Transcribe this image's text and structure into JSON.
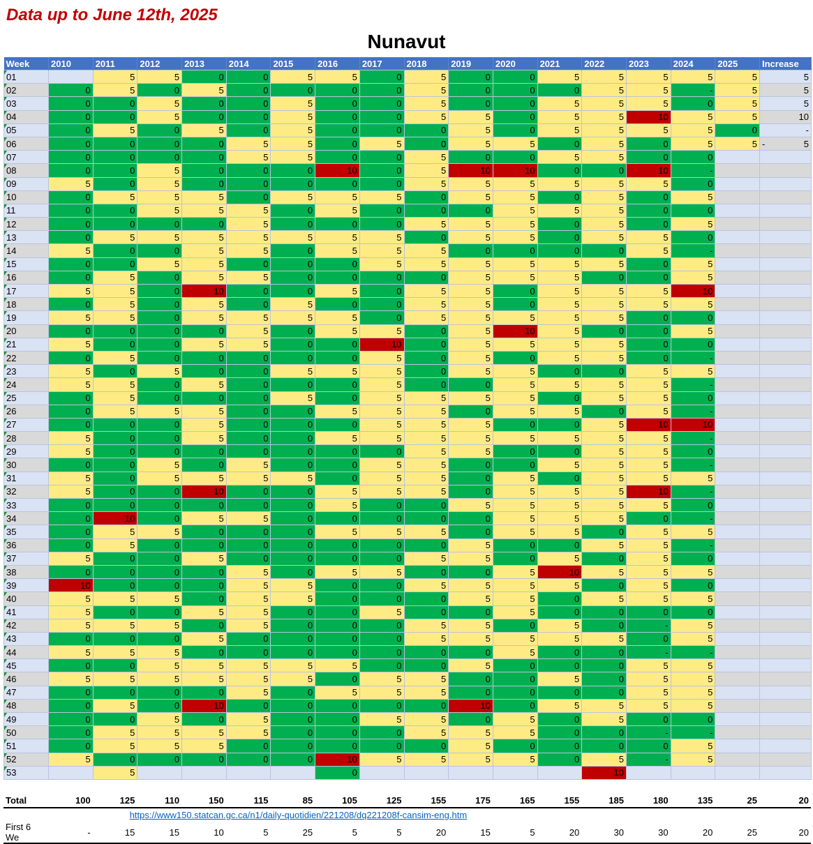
{
  "title": "Data up to June 12th, 2025",
  "region": "Nunavut",
  "headers": [
    "Week",
    "2010",
    "2011",
    "2012",
    "2013",
    "2014",
    "2015",
    "2016",
    "2017",
    "2018",
    "2019",
    "2020",
    "2021",
    "2022",
    "2023",
    "2024",
    "2025",
    "Increase"
  ],
  "colors": {
    "header": "#4472c4",
    "green": "#00b050",
    "yellow": "#ffeb84",
    "red": "#c00000",
    "title": "#c00000"
  },
  "rows": [
    {
      "week": "01",
      "values": [
        "",
        "5",
        "5",
        "0",
        "0",
        "5",
        "5",
        "0",
        "5",
        "0",
        "0",
        "5",
        "5",
        "5",
        "5"
      ],
      "y2025": "5",
      "increase": "5"
    },
    {
      "week": "02",
      "values": [
        "0",
        "5",
        "0",
        "5",
        "0",
        "0",
        "0",
        "0",
        "5",
        "0",
        "0",
        "0",
        "5",
        "5",
        "-"
      ],
      "y2025": "5",
      "increase": "5"
    },
    {
      "week": "03",
      "values": [
        "0",
        "0",
        "5",
        "0",
        "0",
        "5",
        "0",
        "0",
        "5",
        "0",
        "0",
        "5",
        "5",
        "5",
        "0"
      ],
      "y2025": "5",
      "increase": "5"
    },
    {
      "week": "04",
      "values": [
        "0",
        "0",
        "5",
        "0",
        "0",
        "5",
        "0",
        "0",
        "5",
        "5",
        "0",
        "5",
        "5",
        "10",
        "5"
      ],
      "y2025": "5",
      "increase": "10"
    },
    {
      "week": "05",
      "values": [
        "0",
        "5",
        "0",
        "5",
        "0",
        "5",
        "0",
        "0",
        "0",
        "5",
        "0",
        "5",
        "5",
        "5",
        "5"
      ],
      "y2025": "0",
      "increase": "-"
    },
    {
      "week": "06",
      "values": [
        "0",
        "0",
        "0",
        "0",
        "5",
        "5",
        "0",
        "5",
        "0",
        "5",
        "5",
        "0",
        "5",
        "0",
        "5"
      ],
      "y2025": "5",
      "increase": "5",
      "increase_prefix": "-"
    },
    {
      "week": "07",
      "values": [
        "0",
        "0",
        "0",
        "0",
        "5",
        "5",
        "0",
        "0",
        "5",
        "0",
        "0",
        "5",
        "5",
        "0",
        "0"
      ]
    },
    {
      "week": "08",
      "values": [
        "0",
        "0",
        "5",
        "0",
        "0",
        "0",
        "10",
        "0",
        "5",
        "10",
        "10",
        "0",
        "0",
        "10",
        "-"
      ]
    },
    {
      "week": "09",
      "values": [
        "5",
        "0",
        "5",
        "0",
        "0",
        "0",
        "0",
        "0",
        "5",
        "5",
        "5",
        "5",
        "5",
        "5",
        "0"
      ]
    },
    {
      "week": "10",
      "values": [
        "0",
        "5",
        "5",
        "5",
        "0",
        "5",
        "5",
        "5",
        "0",
        "5",
        "5",
        "0",
        "5",
        "0",
        "5"
      ]
    },
    {
      "week": "11",
      "values": [
        "0",
        "0",
        "5",
        "5",
        "5",
        "0",
        "5",
        "0",
        "0",
        "0",
        "5",
        "5",
        "5",
        "0",
        "0"
      ]
    },
    {
      "week": "12",
      "values": [
        "0",
        "0",
        "0",
        "0",
        "5",
        "0",
        "0",
        "0",
        "5",
        "5",
        "5",
        "0",
        "5",
        "0",
        "5"
      ]
    },
    {
      "week": "13",
      "values": [
        "0",
        "5",
        "5",
        "5",
        "5",
        "5",
        "5",
        "5",
        "0",
        "5",
        "5",
        "0",
        "5",
        "5",
        "0"
      ]
    },
    {
      "week": "14",
      "values": [
        "5",
        "0",
        "0",
        "5",
        "5",
        "0",
        "5",
        "5",
        "5",
        "0",
        "0",
        "0",
        "0",
        "5",
        "-"
      ]
    },
    {
      "week": "15",
      "values": [
        "0",
        "0",
        "5",
        "5",
        "0",
        "0",
        "0",
        "5",
        "5",
        "5",
        "5",
        "5",
        "5",
        "0",
        "5"
      ]
    },
    {
      "week": "16",
      "values": [
        "0",
        "5",
        "0",
        "5",
        "5",
        "0",
        "0",
        "0",
        "0",
        "5",
        "5",
        "5",
        "0",
        "0",
        "5"
      ]
    },
    {
      "week": "17",
      "values": [
        "5",
        "5",
        "0",
        "10",
        "0",
        "0",
        "5",
        "0",
        "5",
        "5",
        "0",
        "5",
        "5",
        "5",
        "10"
      ]
    },
    {
      "week": "18",
      "values": [
        "0",
        "5",
        "0",
        "5",
        "0",
        "5",
        "0",
        "0",
        "5",
        "5",
        "0",
        "5",
        "5",
        "5",
        "5"
      ]
    },
    {
      "week": "19",
      "values": [
        "5",
        "5",
        "0",
        "5",
        "5",
        "5",
        "5",
        "0",
        "5",
        "5",
        "5",
        "5",
        "5",
        "0",
        "0"
      ]
    },
    {
      "week": "20",
      "values": [
        "0",
        "0",
        "0",
        "0",
        "5",
        "0",
        "5",
        "5",
        "0",
        "5",
        "10",
        "5",
        "0",
        "0",
        "5"
      ]
    },
    {
      "week": "21",
      "values": [
        "5",
        "0",
        "0",
        "5",
        "5",
        "0",
        "0",
        "10",
        "0",
        "5",
        "5",
        "5",
        "5",
        "0",
        "0"
      ]
    },
    {
      "week": "22",
      "values": [
        "0",
        "5",
        "0",
        "0",
        "0",
        "0",
        "0",
        "5",
        "0",
        "5",
        "0",
        "5",
        "5",
        "0",
        "-"
      ]
    },
    {
      "week": "23",
      "values": [
        "5",
        "0",
        "5",
        "0",
        "0",
        "5",
        "5",
        "5",
        "0",
        "5",
        "5",
        "0",
        "0",
        "5",
        "5"
      ]
    },
    {
      "week": "24",
      "values": [
        "5",
        "5",
        "0",
        "5",
        "0",
        "0",
        "0",
        "5",
        "0",
        "0",
        "5",
        "5",
        "5",
        "5",
        "-"
      ]
    },
    {
      "week": "25",
      "values": [
        "0",
        "5",
        "0",
        "0",
        "0",
        "5",
        "0",
        "5",
        "5",
        "5",
        "5",
        "0",
        "5",
        "5",
        "0"
      ]
    },
    {
      "week": "26",
      "values": [
        "0",
        "5",
        "5",
        "5",
        "0",
        "0",
        "5",
        "5",
        "5",
        "0",
        "5",
        "5",
        "0",
        "5",
        "-"
      ]
    },
    {
      "week": "27",
      "values": [
        "0",
        "0",
        "0",
        "5",
        "0",
        "0",
        "0",
        "5",
        "5",
        "5",
        "0",
        "0",
        "5",
        "10",
        "10"
      ]
    },
    {
      "week": "28",
      "values": [
        "5",
        "0",
        "0",
        "5",
        "0",
        "0",
        "5",
        "5",
        "5",
        "5",
        "5",
        "5",
        "5",
        "5",
        "-"
      ]
    },
    {
      "week": "29",
      "values": [
        "5",
        "0",
        "0",
        "0",
        "0",
        "0",
        "0",
        "0",
        "5",
        "5",
        "0",
        "0",
        "5",
        "5",
        "0"
      ]
    },
    {
      "week": "30",
      "values": [
        "0",
        "0",
        "5",
        "0",
        "5",
        "0",
        "0",
        "5",
        "5",
        "0",
        "0",
        "5",
        "5",
        "5",
        "-"
      ]
    },
    {
      "week": "31",
      "values": [
        "5",
        "0",
        "5",
        "5",
        "5",
        "5",
        "0",
        "5",
        "5",
        "0",
        "5",
        "0",
        "5",
        "5",
        "5"
      ]
    },
    {
      "week": "32",
      "values": [
        "5",
        "0",
        "0",
        "10",
        "0",
        "0",
        "5",
        "5",
        "5",
        "0",
        "5",
        "5",
        "5",
        "10",
        "-"
      ]
    },
    {
      "week": "33",
      "values": [
        "0",
        "0",
        "0",
        "0",
        "0",
        "0",
        "5",
        "0",
        "0",
        "5",
        "5",
        "5",
        "5",
        "5",
        "0"
      ]
    },
    {
      "week": "34",
      "values": [
        "0",
        "10",
        "0",
        "5",
        "5",
        "0",
        "0",
        "0",
        "0",
        "0",
        "5",
        "5",
        "5",
        "0",
        "-"
      ]
    },
    {
      "week": "35",
      "values": [
        "0",
        "5",
        "5",
        "0",
        "0",
        "0",
        "5",
        "5",
        "5",
        "0",
        "5",
        "5",
        "0",
        "5",
        "5"
      ]
    },
    {
      "week": "36",
      "values": [
        "0",
        "5",
        "0",
        "0",
        "0",
        "0",
        "0",
        "0",
        "0",
        "5",
        "0",
        "0",
        "5",
        "5",
        "-"
      ]
    },
    {
      "week": "37",
      "values": [
        "5",
        "0",
        "0",
        "5",
        "0",
        "0",
        "0",
        "0",
        "5",
        "5",
        "0",
        "5",
        "0",
        "5",
        "0"
      ]
    },
    {
      "week": "38",
      "values": [
        "0",
        "0",
        "0",
        "0",
        "5",
        "0",
        "5",
        "5",
        "0",
        "0",
        "5",
        "10",
        "5",
        "5",
        "5"
      ]
    },
    {
      "week": "39",
      "values": [
        "10",
        "0",
        "0",
        "0",
        "5",
        "5",
        "0",
        "0",
        "5",
        "5",
        "5",
        "5",
        "0",
        "5",
        "0"
      ]
    },
    {
      "week": "40",
      "values": [
        "5",
        "5",
        "5",
        "0",
        "5",
        "5",
        "0",
        "0",
        "0",
        "5",
        "5",
        "0",
        "5",
        "5",
        "5"
      ]
    },
    {
      "week": "41",
      "values": [
        "5",
        "0",
        "0",
        "5",
        "5",
        "0",
        "0",
        "5",
        "0",
        "0",
        "5",
        "0",
        "0",
        "0",
        "0"
      ]
    },
    {
      "week": "42",
      "values": [
        "5",
        "5",
        "5",
        "0",
        "5",
        "0",
        "0",
        "0",
        "5",
        "5",
        "0",
        "5",
        "0",
        "-",
        "5"
      ]
    },
    {
      "week": "43",
      "values": [
        "0",
        "0",
        "0",
        "5",
        "0",
        "0",
        "0",
        "0",
        "5",
        "5",
        "5",
        "5",
        "5",
        "0",
        "5"
      ]
    },
    {
      "week": "44",
      "values": [
        "5",
        "5",
        "5",
        "0",
        "0",
        "0",
        "0",
        "0",
        "0",
        "0",
        "5",
        "0",
        "0",
        "-",
        "-"
      ]
    },
    {
      "week": "45",
      "values": [
        "0",
        "0",
        "5",
        "5",
        "5",
        "5",
        "5",
        "0",
        "0",
        "5",
        "0",
        "0",
        "0",
        "5",
        "5"
      ]
    },
    {
      "week": "46",
      "values": [
        "5",
        "5",
        "5",
        "5",
        "5",
        "5",
        "0",
        "5",
        "5",
        "0",
        "0",
        "5",
        "0",
        "5",
        "5"
      ]
    },
    {
      "week": "47",
      "values": [
        "0",
        "0",
        "0",
        "0",
        "5",
        "0",
        "5",
        "5",
        "5",
        "0",
        "0",
        "0",
        "0",
        "5",
        "5"
      ]
    },
    {
      "week": "48",
      "values": [
        "0",
        "5",
        "0",
        "10",
        "0",
        "0",
        "0",
        "0",
        "0",
        "10",
        "0",
        "5",
        "5",
        "5",
        "5"
      ]
    },
    {
      "week": "49",
      "values": [
        "0",
        "0",
        "5",
        "0",
        "5",
        "0",
        "0",
        "5",
        "5",
        "0",
        "5",
        "0",
        "5",
        "0",
        "0"
      ]
    },
    {
      "week": "50",
      "values": [
        "0",
        "5",
        "5",
        "5",
        "5",
        "0",
        "0",
        "0",
        "5",
        "5",
        "5",
        "0",
        "0",
        "-",
        "-"
      ]
    },
    {
      "week": "51",
      "values": [
        "0",
        "5",
        "5",
        "5",
        "0",
        "0",
        "0",
        "0",
        "0",
        "5",
        "0",
        "0",
        "0",
        "0",
        "5"
      ]
    },
    {
      "week": "52",
      "values": [
        "5",
        "0",
        "0",
        "0",
        "0",
        "0",
        "10",
        "5",
        "5",
        "5",
        "5",
        "0",
        "5",
        "-",
        "5"
      ]
    },
    {
      "week": "53",
      "values": [
        "",
        "5",
        "",
        "",
        "",
        "",
        "0",
        "",
        "",
        "",
        "",
        "",
        "10",
        "",
        ""
      ]
    }
  ],
  "totals": {
    "label": "Total",
    "values": [
      "100",
      "125",
      "110",
      "150",
      "115",
      "85",
      "105",
      "125",
      "155",
      "175",
      "165",
      "155",
      "185",
      "180",
      "135",
      "25",
      "20"
    ]
  },
  "link": "https://www150.statcan.gc.ca/n1/daily-quotidien/221208/dq221208f-cansim-eng.htm",
  "first6": {
    "label": "First 6 We",
    "values": [
      "-",
      "15",
      "15",
      "10",
      "5",
      "25",
      "5",
      "5",
      "20",
      "15",
      "5",
      "20",
      "30",
      "30",
      "20",
      "25",
      "20"
    ]
  }
}
